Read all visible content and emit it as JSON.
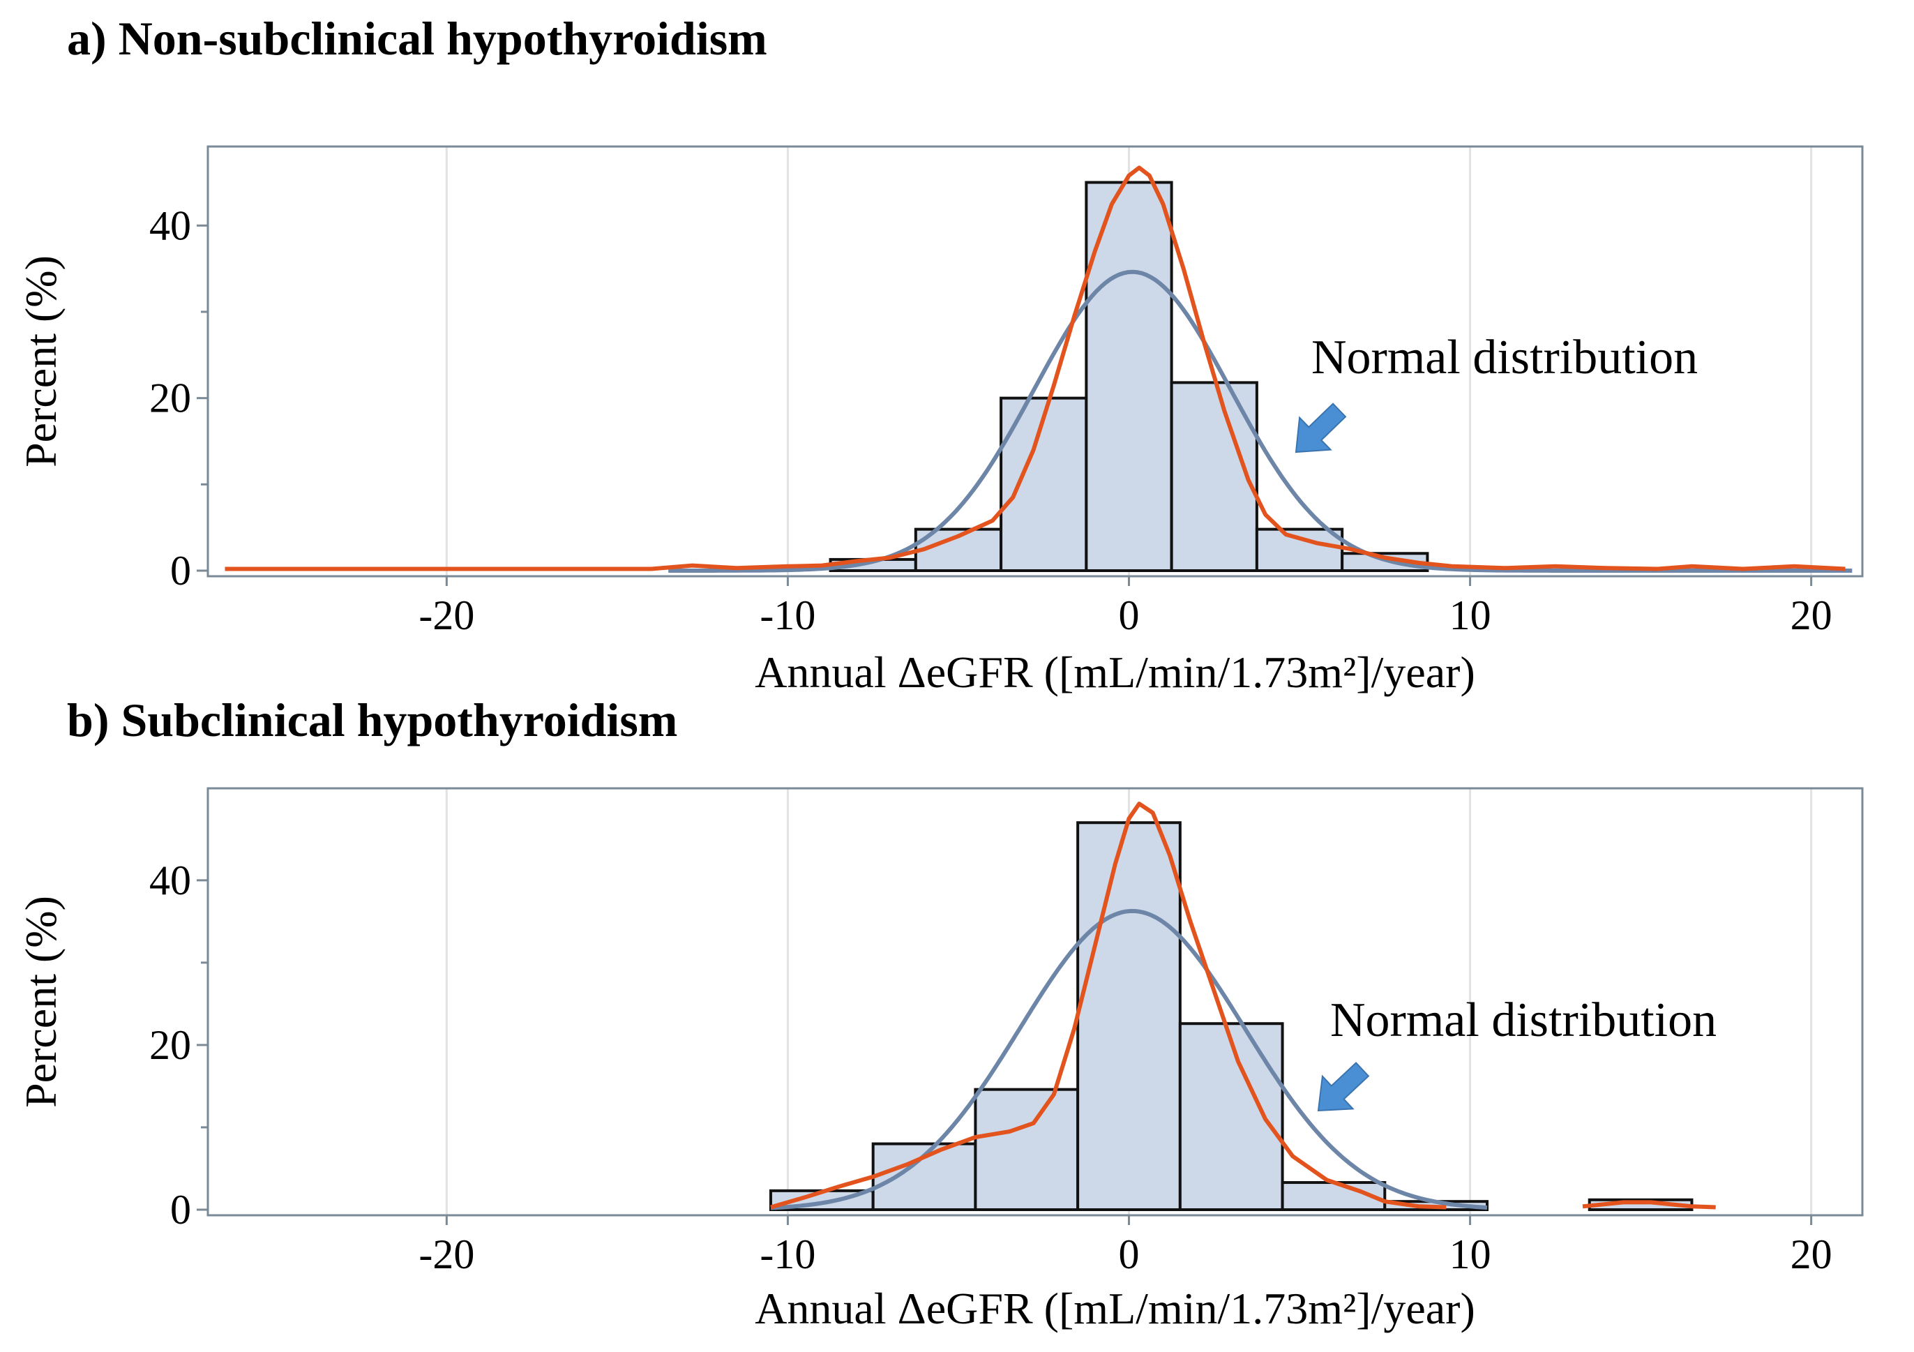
{
  "chart_data": [
    {
      "type": "bar",
      "panel": "a",
      "title": "a) Non-subclinical hypothyroidism",
      "xlabel": "Annual ΔeGFR  ([mL/min/1.73m²]/year)",
      "ylabel": "Percent  (%)",
      "xlim": [
        -27,
        21.5
      ],
      "ylim": [
        0,
        49
      ],
      "xticks": [
        -20,
        -10,
        0,
        10,
        20
      ],
      "xtick_labels": [
        "-20",
        "-10",
        "0",
        "10",
        "20"
      ],
      "yticks": [
        0,
        20,
        40
      ],
      "ytick_labels": [
        "0",
        "20",
        "40"
      ],
      "y_minor_ticks": [
        10,
        30
      ],
      "grid": "vertical",
      "bins": [
        {
          "x0": -8.75,
          "x1": -6.25,
          "value": 1.3
        },
        {
          "x0": -6.25,
          "x1": -3.75,
          "value": 4.8
        },
        {
          "x0": -3.75,
          "x1": -1.25,
          "value": 20.0
        },
        {
          "x0": -1.25,
          "x1": 1.25,
          "value": 45.0
        },
        {
          "x0": 1.25,
          "x1": 3.75,
          "value": 21.8
        },
        {
          "x0": 3.75,
          "x1": 6.25,
          "value": 4.8
        },
        {
          "x0": 6.25,
          "x1": 8.75,
          "value": 2.0
        }
      ],
      "normal_curve": {
        "mean": 0.1,
        "sd": 2.88,
        "scale": 2.5,
        "x_range": [
          -13.5,
          21.2
        ],
        "color": "#6d86a8"
      },
      "kernel_curve": {
        "color": "#e2531e",
        "points": [
          [
            -26.5,
            0.2
          ],
          [
            -14,
            0.2
          ],
          [
            -12.8,
            0.6
          ],
          [
            -11.5,
            0.3
          ],
          [
            -10,
            0.5
          ],
          [
            -9,
            0.6
          ],
          [
            -8,
            1.1
          ],
          [
            -7,
            1.5
          ],
          [
            -6,
            2.5
          ],
          [
            -5,
            4.0
          ],
          [
            -4,
            5.8
          ],
          [
            -3.4,
            8.5
          ],
          [
            -2.8,
            14.0
          ],
          [
            -2.2,
            21.5
          ],
          [
            -1.6,
            29.5
          ],
          [
            -1,
            37.0
          ],
          [
            -0.5,
            42.5
          ],
          [
            0,
            45.8
          ],
          [
            0.3,
            46.7
          ],
          [
            0.6,
            45.8
          ],
          [
            1,
            42.5
          ],
          [
            1.6,
            35.0
          ],
          [
            2.2,
            26.5
          ],
          [
            2.8,
            18.5
          ],
          [
            3.5,
            10.5
          ],
          [
            4,
            6.5
          ],
          [
            4.6,
            4.2
          ],
          [
            5.5,
            3.2
          ],
          [
            6.5,
            2.5
          ],
          [
            7.5,
            1.5
          ],
          [
            8.5,
            0.9
          ],
          [
            9.5,
            0.5
          ],
          [
            11,
            0.3
          ],
          [
            12.5,
            0.5
          ],
          [
            14,
            0.3
          ],
          [
            15.5,
            0.2
          ],
          [
            16.5,
            0.5
          ],
          [
            18,
            0.2
          ],
          [
            19.5,
            0.5
          ],
          [
            21,
            0.2
          ]
        ]
      },
      "annotation": "Normal distribution"
    },
    {
      "type": "bar",
      "panel": "b",
      "title": "b) Subclinical hypothyroidism",
      "xlabel": "Annual ΔeGFR  ([mL/min/1.73m²]/year)",
      "ylabel": "Percent (%)",
      "xlim": [
        -27,
        21.5
      ],
      "ylim": [
        0,
        51
      ],
      "xticks": [
        -20,
        -10,
        0,
        10,
        20
      ],
      "xtick_labels": [
        "-20",
        "-10",
        "0",
        "10",
        "20"
      ],
      "yticks": [
        0,
        20,
        40
      ],
      "ytick_labels": [
        "0",
        "20",
        "40"
      ],
      "y_minor_ticks": [
        10,
        30
      ],
      "grid": "vertical",
      "bins": [
        {
          "x0": -10.5,
          "x1": -7.5,
          "value": 2.3
        },
        {
          "x0": -7.5,
          "x1": -4.5,
          "value": 8.0
        },
        {
          "x0": -4.5,
          "x1": -1.5,
          "value": 14.6
        },
        {
          "x0": -1.5,
          "x1": 1.5,
          "value": 47.0
        },
        {
          "x0": 1.5,
          "x1": 4.5,
          "value": 22.6
        },
        {
          "x0": 4.5,
          "x1": 7.5,
          "value": 3.3
        },
        {
          "x0": 7.5,
          "x1": 10.5,
          "value": 1.0
        },
        {
          "x0": 13.5,
          "x1": 16.5,
          "value": 1.2
        }
      ],
      "normal_curve": {
        "mean": 0.1,
        "sd": 3.3,
        "scale": 3.0,
        "x_range": [
          -10.5,
          10.5
        ],
        "color": "#6d86a8"
      },
      "kernel_curve": {
        "color": "#e2531e",
        "points": [
          [
            -10.5,
            0.3
          ],
          [
            -9.5,
            1.5
          ],
          [
            -8.5,
            2.8
          ],
          [
            -7.5,
            4.0
          ],
          [
            -6.5,
            5.5
          ],
          [
            -5.5,
            7.3
          ],
          [
            -4.5,
            8.8
          ],
          [
            -3.5,
            9.5
          ],
          [
            -2.8,
            10.5
          ],
          [
            -2.2,
            14.0
          ],
          [
            -1.6,
            22.0
          ],
          [
            -1,
            32.0
          ],
          [
            -0.4,
            42.0
          ],
          [
            0,
            47.5
          ],
          [
            0.3,
            49.3
          ],
          [
            0.7,
            48.2
          ],
          [
            1.2,
            43.0
          ],
          [
            1.8,
            35.0
          ],
          [
            2.5,
            26.5
          ],
          [
            3.2,
            18.0
          ],
          [
            4,
            11.0
          ],
          [
            4.8,
            6.5
          ],
          [
            5.8,
            3.6
          ],
          [
            6.8,
            2.2
          ],
          [
            7.5,
            1.0
          ],
          [
            8.5,
            0.4
          ],
          [
            9.3,
            0.3
          ]
        ],
        "extra_segment": [
          [
            13.3,
            0.4
          ],
          [
            14.5,
            0.9
          ],
          [
            15.3,
            0.9
          ],
          [
            16.5,
            0.4
          ],
          [
            17.2,
            0.3
          ]
        ]
      },
      "annotation": "Normal distribution"
    }
  ]
}
